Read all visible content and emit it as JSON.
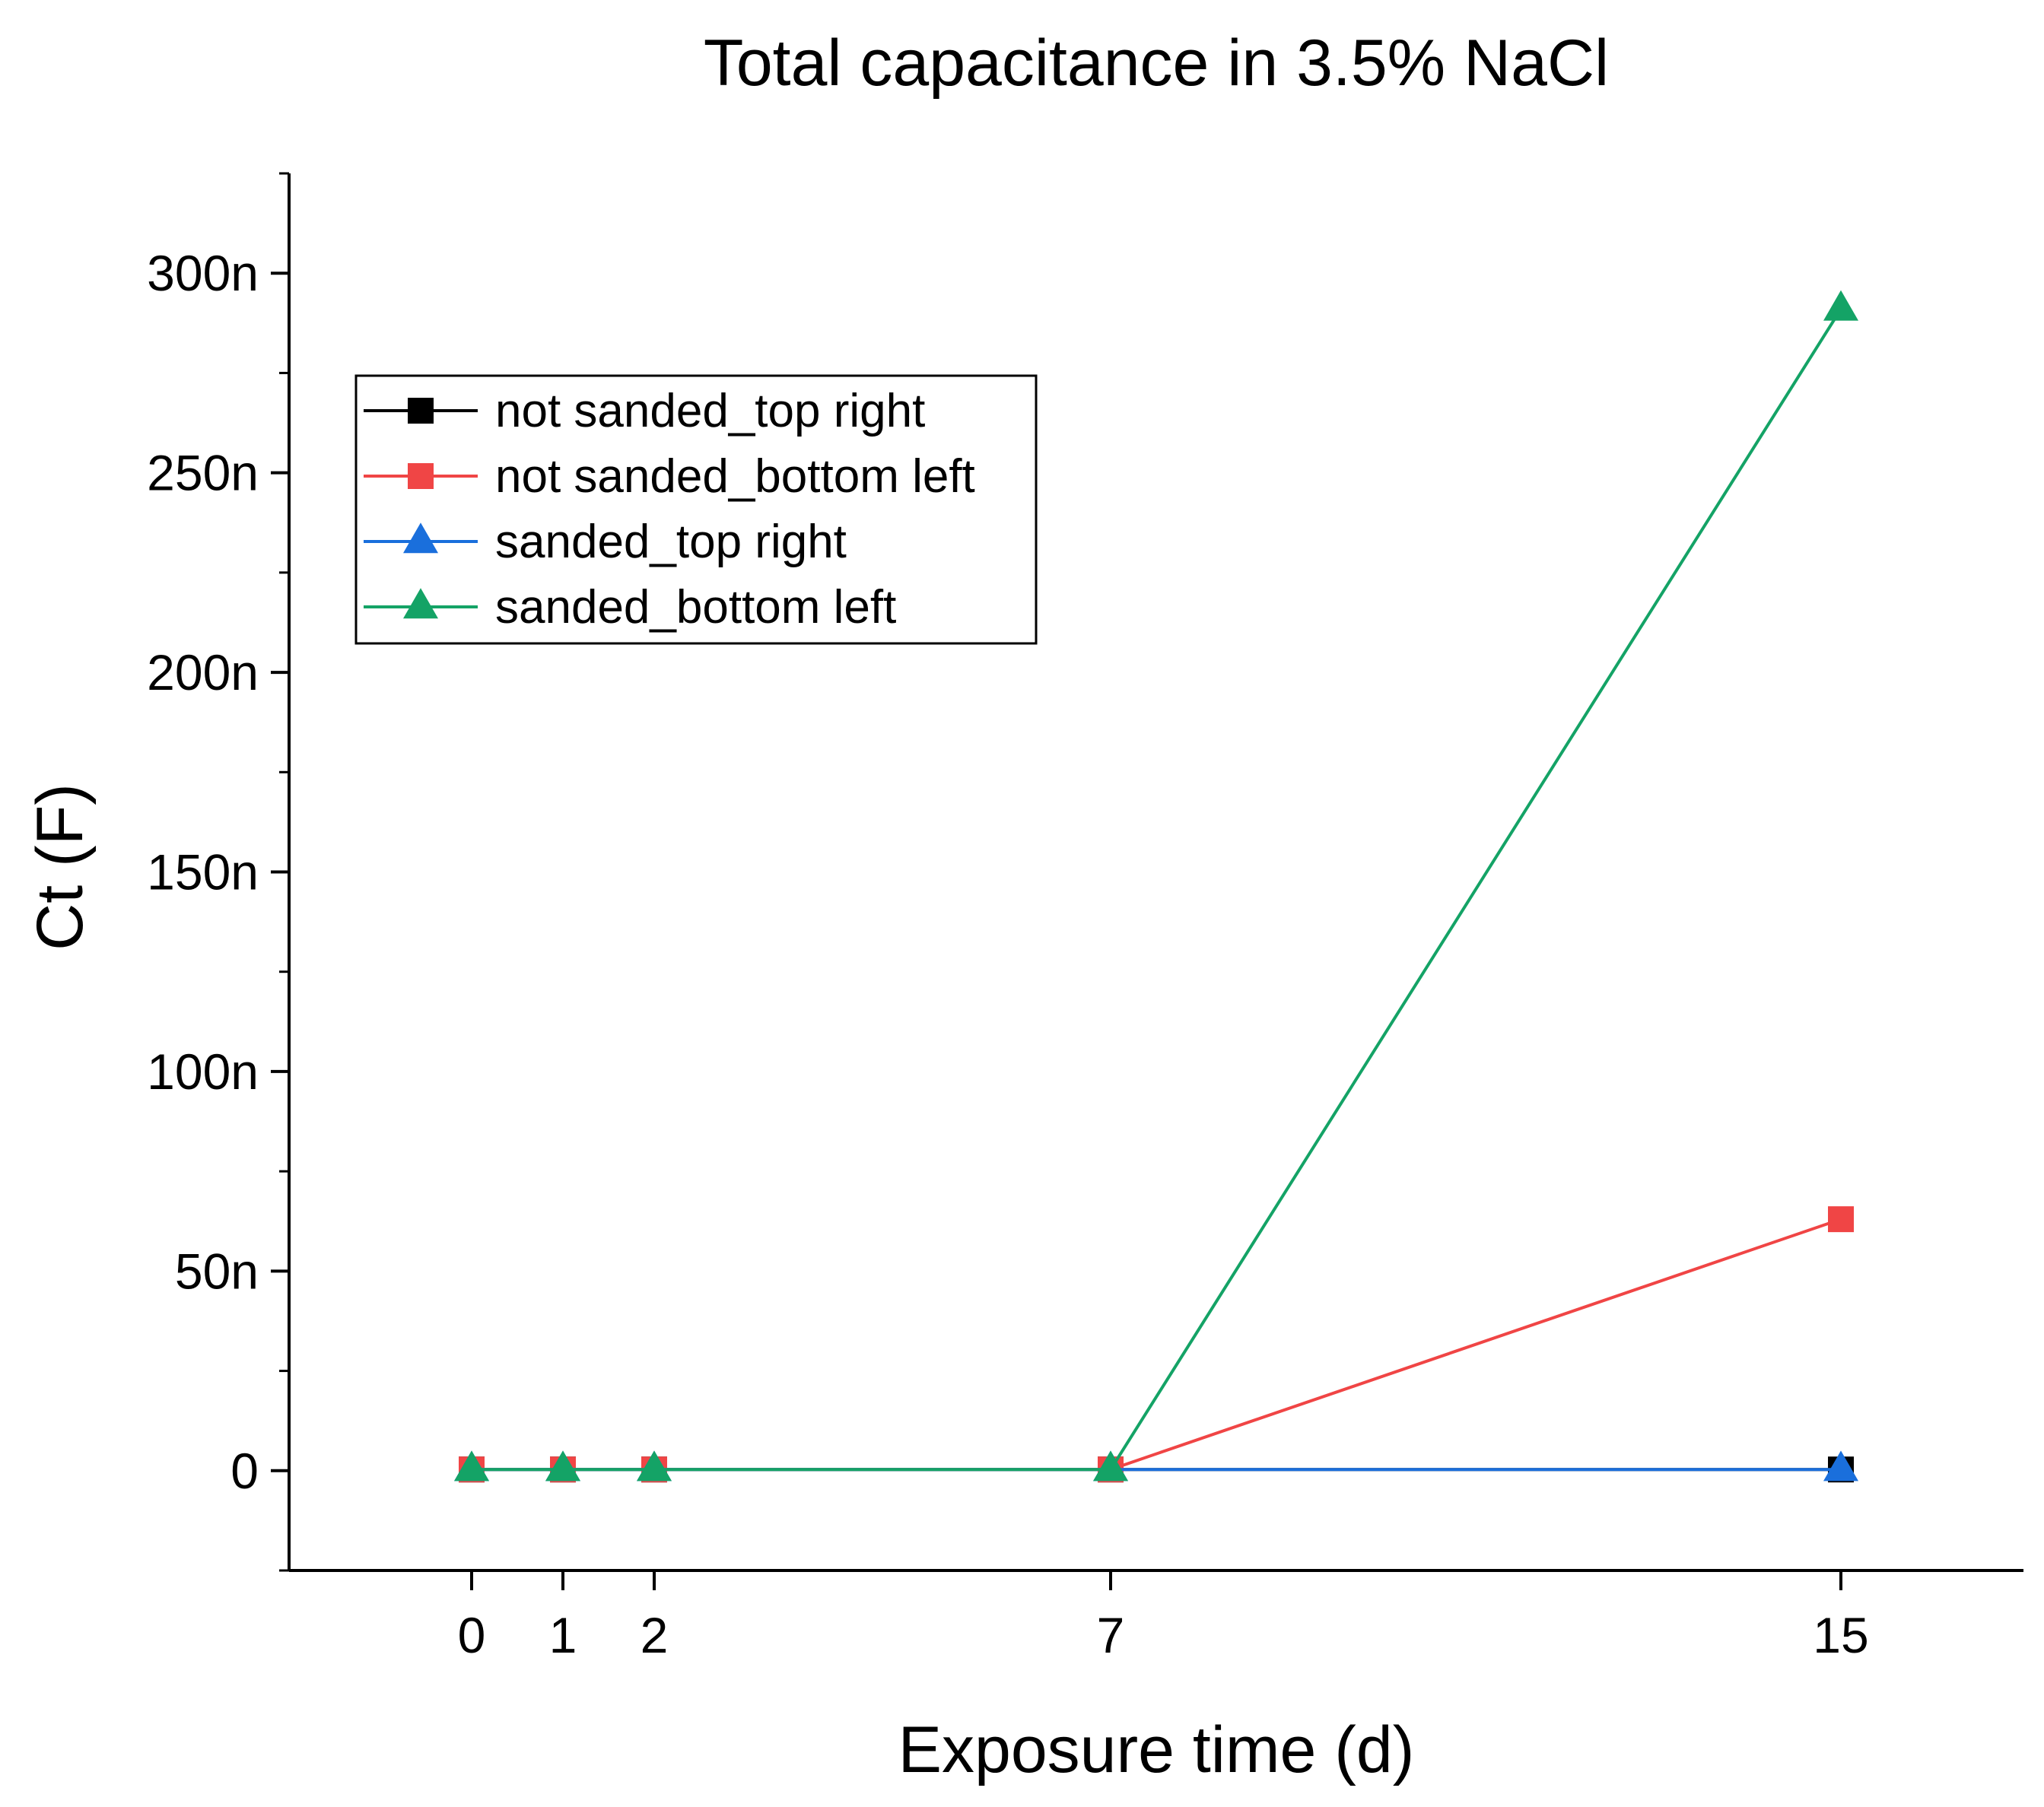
{
  "chart_data": {
    "type": "line",
    "title": "Total capacitance in 3.5% NaCl",
    "xlabel": "Exposure time (d)",
    "ylabel": "Ct (F)",
    "x": [
      0,
      1,
      2,
      7,
      15
    ],
    "x_ticks": [
      0,
      1,
      2,
      7,
      15
    ],
    "x_tick_labels": [
      "0",
      "1",
      "2",
      "7",
      "15"
    ],
    "xlim": [
      -2,
      17
    ],
    "ylim": [
      -25,
      325
    ],
    "y_unit_scale": "n",
    "y_ticks": [
      0,
      50,
      100,
      150,
      200,
      250,
      300
    ],
    "y_tick_labels": [
      "0",
      "50n",
      "100n",
      "150n",
      "200n",
      "250n",
      "300n"
    ],
    "grid": false,
    "legend_position": "top-left",
    "series": [
      {
        "name": "not sanded_top right",
        "color": "#000000",
        "marker": "square",
        "values": [
          0.3,
          0.3,
          0.3,
          0.3,
          0.3
        ]
      },
      {
        "name": "not sanded_bottom left",
        "color": "#f04545",
        "marker": "square",
        "values": [
          0.3,
          0.3,
          0.3,
          0.3,
          63
        ]
      },
      {
        "name": "sanded_top right",
        "color": "#1a6fdc",
        "marker": "triangle",
        "values": [
          0.3,
          0.3,
          0.3,
          0.3,
          0.3
        ]
      },
      {
        "name": "sanded_bottom left",
        "color": "#14a366",
        "marker": "triangle",
        "values": [
          0.3,
          0.3,
          0.3,
          0.3,
          291
        ]
      }
    ]
  }
}
